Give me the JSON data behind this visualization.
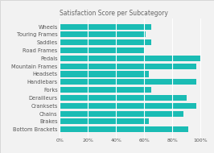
{
  "title": "Satisfaction Score per Subcategory",
  "categories": [
    "Bottom Brackets",
    "Brakes",
    "Chains",
    "Cranksets",
    "Derailleurs",
    "Forks",
    "Handlebars",
    "Headsets",
    "Mountain Frames",
    "Pedals",
    "Road Frames",
    "Saddles",
    "Touring Frames",
    "Wheels"
  ],
  "values": [
    0.91,
    0.63,
    0.88,
    0.97,
    0.9,
    0.65,
    0.97,
    0.63,
    0.97,
    1.0,
    0.6,
    0.65,
    0.61,
    0.65
  ],
  "bar_color": "#1ABCB4",
  "background_color": "#F2F2F2",
  "plot_bg_color": "#F2F2F2",
  "title_fontsize": 5.5,
  "label_fontsize": 4.8,
  "tick_fontsize": 4.5,
  "title_color": "#666666",
  "label_color": "#555555",
  "grid_color": "#FFFFFF",
  "xlim": [
    0,
    1.05
  ]
}
